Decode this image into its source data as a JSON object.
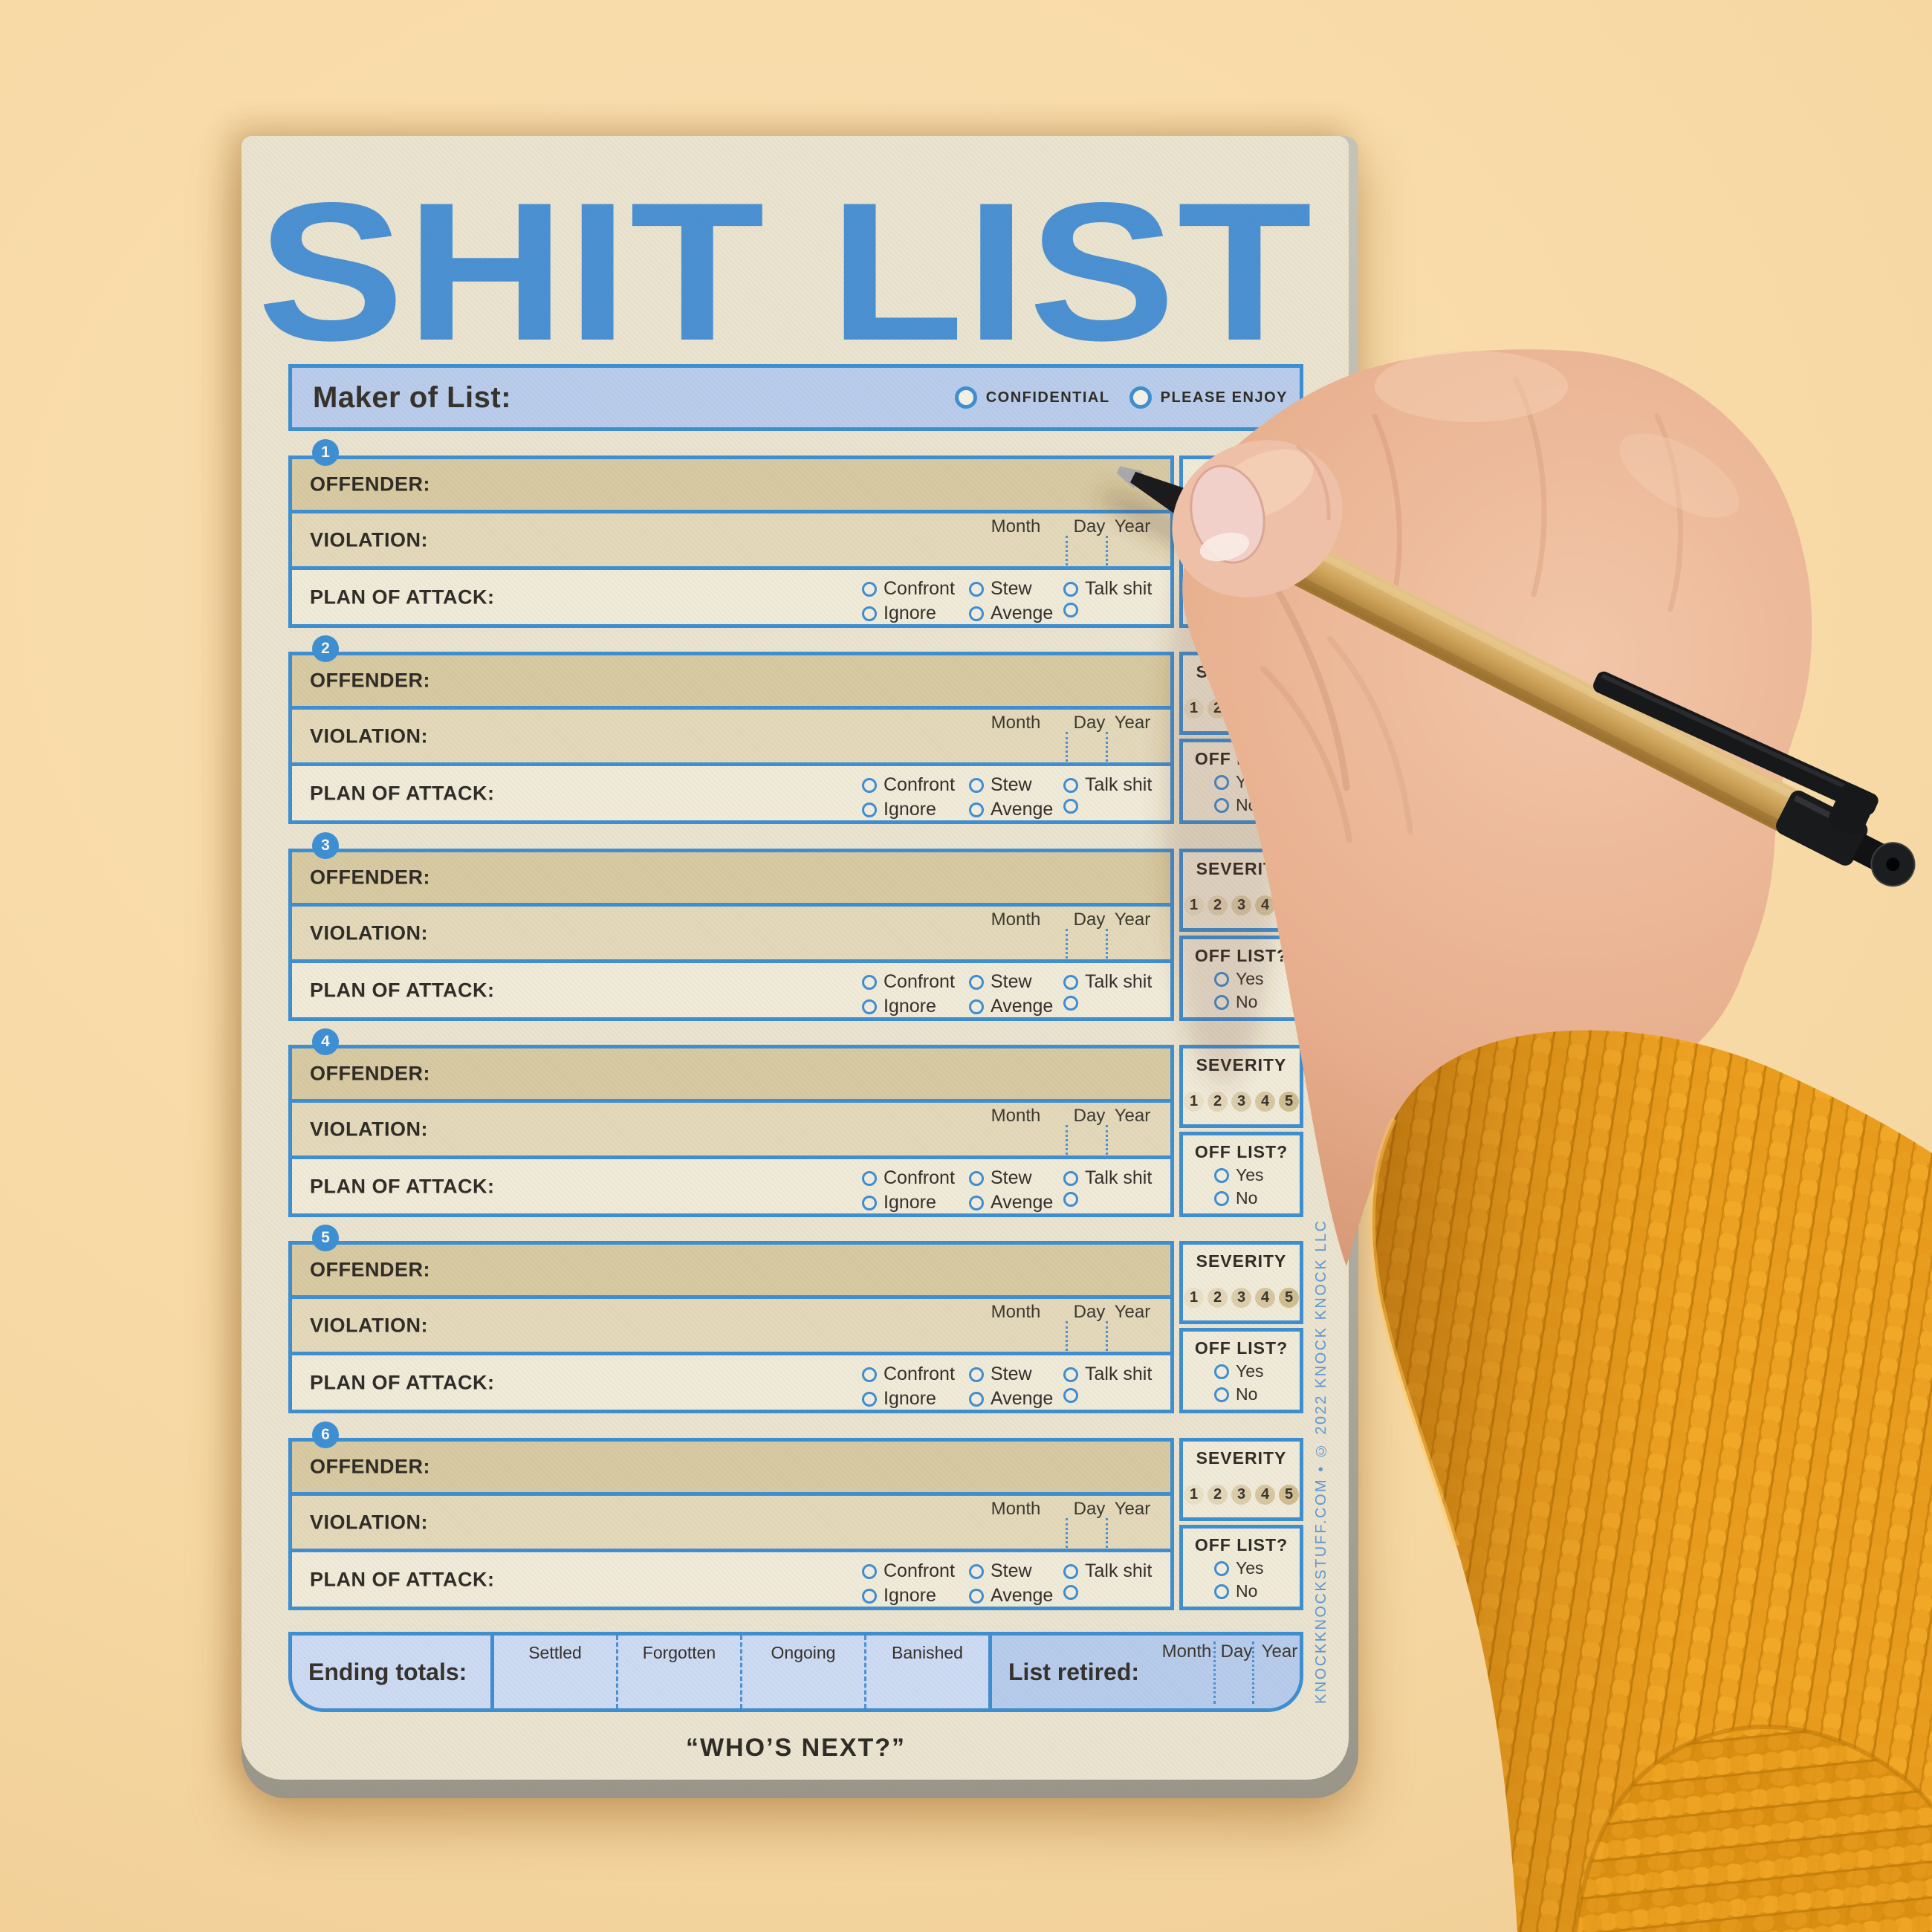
{
  "page": {
    "title": "SHIT LIST",
    "footer_quote": "“WHO’S NEXT?”",
    "side_credit": "KNOCKKNOCKSTUFF.COM • © 2022 KNOCK KNOCK LLC"
  },
  "maker_bar": {
    "label": "Maker of List:",
    "options": [
      {
        "label": "CONFIDENTIAL"
      },
      {
        "label": "PLEASE ENJOY"
      }
    ]
  },
  "entry_template": {
    "offender_label": "OFFENDER:",
    "violation_label": "VIOLATION:",
    "plan_label": "PLAN OF ATTACK:",
    "date_labels": [
      "Month",
      "Day",
      "Year"
    ],
    "plan_options_row1": [
      "Confront",
      "Stew",
      "Talk shit"
    ],
    "plan_options_row2": [
      "Ignore",
      "Avenge",
      ""
    ],
    "severity_label": "SEVERITY",
    "severity_levels": [
      "1",
      "2",
      "3",
      "4",
      "5"
    ],
    "off_list_label": "OFF LIST?",
    "off_list_options": [
      "Yes",
      "No"
    ]
  },
  "entries": [
    {
      "number": "1"
    },
    {
      "number": "2"
    },
    {
      "number": "3"
    },
    {
      "number": "4"
    },
    {
      "number": "5"
    },
    {
      "number": "6"
    }
  ],
  "footer_bar": {
    "ending_totals_label": "Ending totals:",
    "total_columns": [
      "Settled",
      "Forgotten",
      "Ongoing",
      "Banished"
    ],
    "list_retired_label": "List retired:",
    "date_labels": [
      "Month",
      "Day",
      "Year"
    ]
  },
  "colors": {
    "accent_blue": "#3e8ed2",
    "title_blue": "#4a90d2",
    "bar_blue_light": "#ccdaf3",
    "bar_blue_dark": "#b9cceb",
    "offender_tan": "#d7c9a1",
    "violation_tan": "#e3d8ba",
    "box_cream": "#f0ead9",
    "paper_cream": "#e9e3cf",
    "background_peach": "#f7dbaa",
    "sweater_mustard": "#e89d1c",
    "skin_tone": "#e9b191",
    "pen_kraft": "#c9a05a",
    "text_dark": "#2f2b26",
    "severity_scale": [
      "#e9e0c6",
      "#e3d6b8",
      "#dcceac",
      "#d7c7a1",
      "#d0bd90"
    ]
  }
}
